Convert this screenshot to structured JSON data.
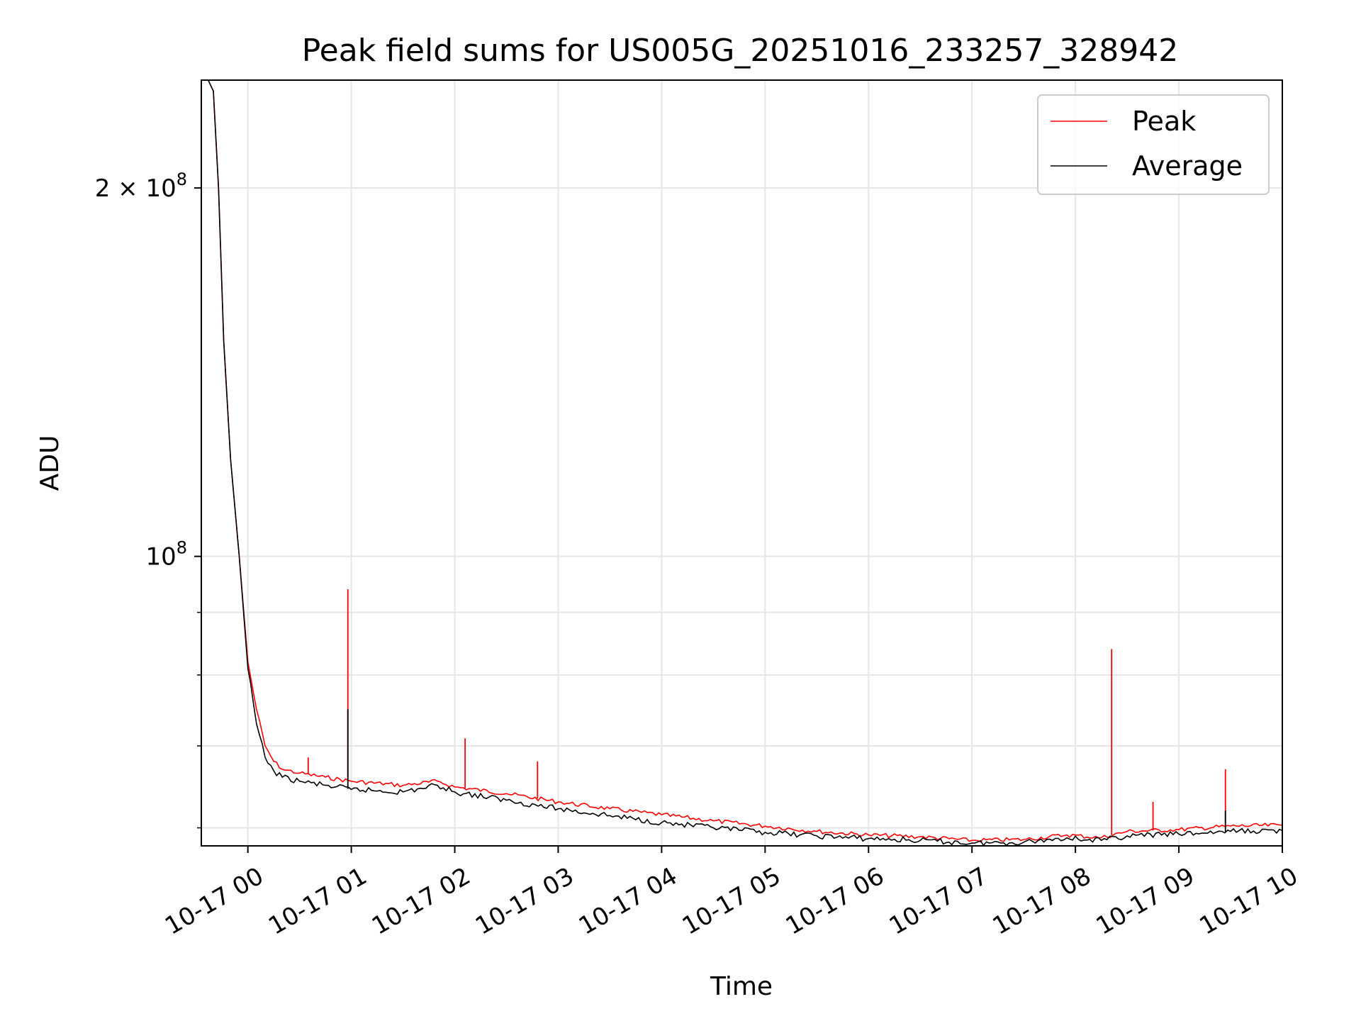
{
  "chart_data": {
    "type": "line",
    "title": "Peak field sums for US005G_20251016_233257_328942",
    "xlabel": "Time",
    "ylabel": "ADU",
    "y_scale": "log",
    "ylim": [
      58000000,
      245000000
    ],
    "xlim": [
      "2025-10-16 23:33",
      "2025-10-17 10:00"
    ],
    "grid": true,
    "legend_position": "top-right",
    "x_ticks": [
      "10-17 00",
      "10-17 01",
      "10-17 02",
      "10-17 03",
      "10-17 04",
      "10-17 05",
      "10-17 06",
      "10-17 07",
      "10-17 08",
      "10-17 09",
      "10-17 10"
    ],
    "y_ticks": [
      {
        "value": 100000000,
        "base": "10",
        "exp": "8",
        "mantissa": ""
      },
      {
        "value": 200000000,
        "base": "10",
        "exp": "8",
        "mantissa": "2 × "
      }
    ],
    "y_minor_ticks": [
      60000000,
      70000000,
      80000000,
      90000000
    ],
    "series": [
      {
        "name": "Peak",
        "color": "#ff0000",
        "x": [
          "2025-10-16 23:33",
          "2025-10-16 23:37",
          "2025-10-16 23:40",
          "2025-10-16 23:43",
          "2025-10-16 23:46",
          "2025-10-16 23:50",
          "2025-10-16 23:55",
          "2025-10-17 00:00",
          "2025-10-17 00:05",
          "2025-10-17 00:10",
          "2025-10-17 00:15",
          "2025-10-17 00:20",
          "2025-10-17 00:30",
          "2025-10-17 00:45",
          "2025-10-17 01:00",
          "2025-10-17 01:30",
          "2025-10-17 01:50",
          "2025-10-17 02:00",
          "2025-10-17 02:30",
          "2025-10-17 03:00",
          "2025-10-17 03:30",
          "2025-10-17 04:00",
          "2025-10-17 04:30",
          "2025-10-17 05:00",
          "2025-10-17 05:30",
          "2025-10-17 06:00",
          "2025-10-17 06:30",
          "2025-10-17 07:00",
          "2025-10-17 07:30",
          "2025-10-17 07:55",
          "2025-10-17 08:15",
          "2025-10-17 08:30",
          "2025-10-17 09:00",
          "2025-10-17 09:30",
          "2025-10-17 10:00"
        ],
        "y": [
          245000000,
          245000000,
          240000000,
          200000000,
          150000000,
          120000000,
          100000000,
          82000000,
          75000000,
          70000000,
          68000000,
          67000000,
          66500000,
          66000000,
          65500000,
          65000000,
          65500000,
          64800000,
          64000000,
          63000000,
          62200000,
          61500000,
          60800000,
          60200000,
          59600000,
          59200000,
          59000000,
          58600000,
          58700000,
          59200000,
          58900000,
          59600000,
          59800000,
          60200000,
          60300000
        ],
        "spikes": [
          {
            "x": "2025-10-17 00:58",
            "y": 94000000
          },
          {
            "x": "2025-10-17 02:06",
            "y": 71000000
          },
          {
            "x": "2025-10-17 02:48",
            "y": 68000000
          },
          {
            "x": "2025-10-17 08:21",
            "y": 84000000
          },
          {
            "x": "2025-10-17 09:27",
            "y": 67000000
          },
          {
            "x": "2025-10-17 08:45",
            "y": 63000000
          },
          {
            "x": "2025-10-17 00:35",
            "y": 68500000
          }
        ]
      },
      {
        "name": "Average",
        "color": "#000000",
        "x": [
          "2025-10-16 23:33",
          "2025-10-16 23:37",
          "2025-10-16 23:40",
          "2025-10-16 23:43",
          "2025-10-16 23:46",
          "2025-10-16 23:50",
          "2025-10-16 23:55",
          "2025-10-17 00:00",
          "2025-10-17 00:05",
          "2025-10-17 00:10",
          "2025-10-17 00:15",
          "2025-10-17 00:20",
          "2025-10-17 00:30",
          "2025-10-17 00:45",
          "2025-10-17 01:00",
          "2025-10-17 01:30",
          "2025-10-17 01:50",
          "2025-10-17 02:00",
          "2025-10-17 02:30",
          "2025-10-17 03:00",
          "2025-10-17 03:30",
          "2025-10-17 04:00",
          "2025-10-17 04:30",
          "2025-10-17 05:00",
          "2025-10-17 05:30",
          "2025-10-17 06:00",
          "2025-10-17 06:30",
          "2025-10-17 07:00",
          "2025-10-17 07:30",
          "2025-10-17 07:55",
          "2025-10-17 08:15",
          "2025-10-17 08:30",
          "2025-10-17 09:00",
          "2025-10-17 09:30",
          "2025-10-17 10:00"
        ],
        "y": [
          245000000,
          245000000,
          240000000,
          200000000,
          150000000,
          120000000,
          100000000,
          81000000,
          73000000,
          68500000,
          66800000,
          66000000,
          65500000,
          65000000,
          64500000,
          64200000,
          65000000,
          64200000,
          63200000,
          62200000,
          61400000,
          60600000,
          60000000,
          59500000,
          59100000,
          58800000,
          58600000,
          58300000,
          58400000,
          58900000,
          58600000,
          59100000,
          59300000,
          59600000,
          59700000
        ],
        "spikes": [
          {
            "x": "2025-10-17 00:58",
            "y": 75000000
          },
          {
            "x": "2025-10-17 09:27",
            "y": 62000000
          }
        ]
      }
    ]
  }
}
